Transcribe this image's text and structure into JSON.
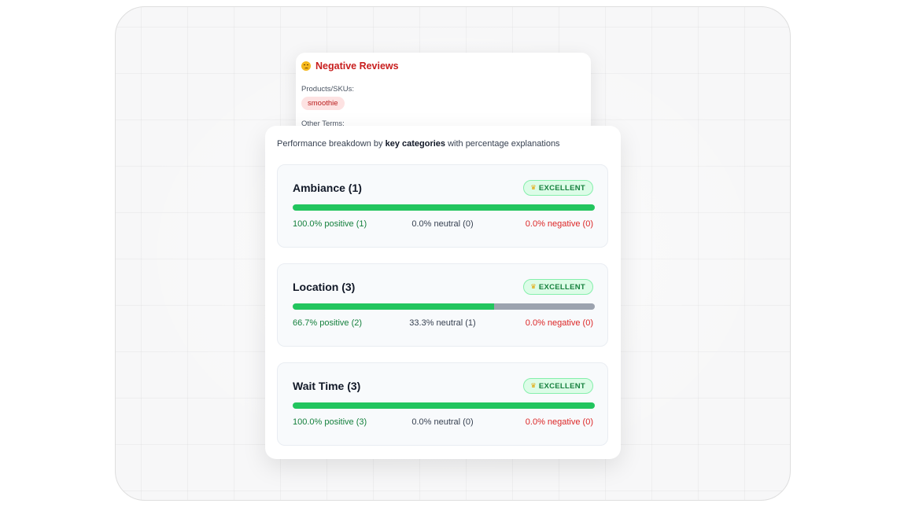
{
  "negative_card": {
    "title": "Negative Reviews",
    "emoji_icon": "sad-face-icon",
    "products_label": "Products/SKUs:",
    "product_chip": "smoothie",
    "other_terms_label": "Other Terms:"
  },
  "breakdown": {
    "intro_prefix": "Performance breakdown by ",
    "intro_bold": "key categories",
    "intro_suffix": " with percentage explanations",
    "categories": [
      {
        "title": "Ambiance (1)",
        "badge": "EXCELLENT",
        "badge_icon": "crown-icon",
        "positive_fraction": 1.0,
        "neutral_fraction": 0.0,
        "negative_fraction": 0.0,
        "positive_text": "100.0% positive (1)",
        "neutral_text": "0.0% neutral (0)",
        "negative_text": "0.0% negative (0)"
      },
      {
        "title": "Location (3)",
        "badge": "EXCELLENT",
        "badge_icon": "crown-icon",
        "positive_fraction": 0.667,
        "neutral_fraction": 0.333,
        "negative_fraction": 0.0,
        "positive_text": "66.7% positive (2)",
        "neutral_text": "33.3% neutral (1)",
        "negative_text": "0.0% negative (0)"
      },
      {
        "title": "Wait Time (3)",
        "badge": "EXCELLENT",
        "badge_icon": "crown-icon",
        "positive_fraction": 1.0,
        "neutral_fraction": 0.0,
        "negative_fraction": 0.0,
        "positive_text": "100.0% positive (3)",
        "neutral_text": "0.0% neutral (0)",
        "negative_text": "0.0% negative (0)"
      }
    ]
  },
  "colors": {
    "positive": "#22c55e",
    "neutral": "#9ca3af",
    "negative": "#ef4444",
    "badge_bg": "#dcfce7",
    "negative_title": "#c81e1e"
  }
}
